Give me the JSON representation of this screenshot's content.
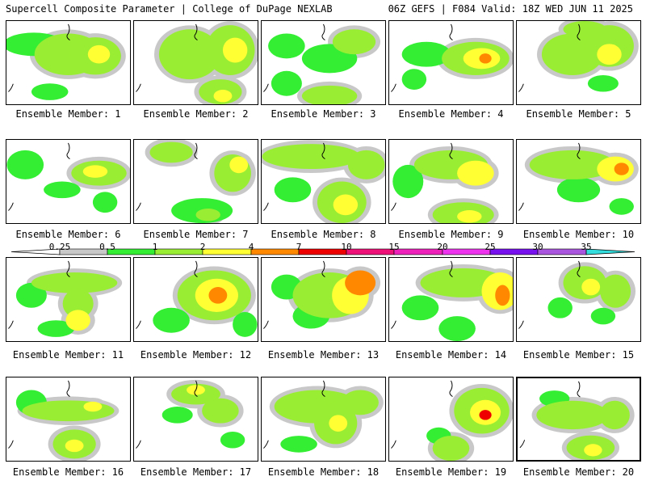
{
  "header": {
    "title_left": "Supercell Composite Parameter | College of DuPage NEXLAB",
    "title_right": "06Z GEFS | F084 Valid: 18Z WED JUN 11 2025"
  },
  "legend": {
    "ticks": [
      "0.25",
      "0.5",
      "1",
      "2",
      "4",
      "7",
      "10",
      "15",
      "20",
      "25",
      "30",
      "35"
    ],
    "colors": [
      "#c8c8c8",
      "#33ee33",
      "#99ee33",
      "#ffff33",
      "#ff8800",
      "#ee0000",
      "#ee1177",
      "#ee22bb",
      "#ee33ee",
      "#7711ee",
      "#aa55dd",
      "#33dddd"
    ]
  },
  "panel_label_prefix": "Ensemble Member: ",
  "members": [
    {
      "label": "Ensemble Member: 1",
      "blobs": [
        [
          0.22,
          0.28,
          0.5,
          0.28,
          0.5
        ],
        [
          0.5,
          0.4,
          0.55,
          0.5,
          1
        ],
        [
          0.72,
          0.42,
          0.42,
          0.45,
          1
        ],
        [
          0.75,
          0.4,
          0.18,
          0.22,
          2
        ],
        [
          0.35,
          0.85,
          0.3,
          0.2,
          0.5
        ]
      ]
    },
    {
      "label": "Ensemble Member: 2",
      "blobs": [
        [
          0.45,
          0.4,
          0.5,
          0.6,
          1
        ],
        [
          0.78,
          0.35,
          0.4,
          0.6,
          1
        ],
        [
          0.82,
          0.35,
          0.2,
          0.3,
          2
        ],
        [
          0.7,
          0.85,
          0.35,
          0.3,
          1
        ],
        [
          0.72,
          0.9,
          0.15,
          0.15,
          2
        ]
      ]
    },
    {
      "label": "Ensemble Member: 3",
      "blobs": [
        [
          0.2,
          0.3,
          0.3,
          0.3,
          0.5
        ],
        [
          0.55,
          0.45,
          0.45,
          0.35,
          0.5
        ],
        [
          0.75,
          0.25,
          0.35,
          0.3,
          1
        ],
        [
          0.55,
          0.9,
          0.45,
          0.25,
          1
        ],
        [
          0.2,
          0.75,
          0.25,
          0.3,
          0.5
        ]
      ]
    },
    {
      "label": "Ensemble Member: 4",
      "blobs": [
        [
          0.3,
          0.4,
          0.4,
          0.3,
          0.5
        ],
        [
          0.7,
          0.45,
          0.55,
          0.4,
          1
        ],
        [
          0.75,
          0.45,
          0.3,
          0.25,
          2
        ],
        [
          0.78,
          0.45,
          0.1,
          0.12,
          4
        ],
        [
          0.2,
          0.7,
          0.2,
          0.25,
          0.5
        ]
      ]
    },
    {
      "label": "Ensemble Member: 5",
      "blobs": [
        [
          0.45,
          0.4,
          0.5,
          0.5,
          1
        ],
        [
          0.75,
          0.3,
          0.4,
          0.5,
          1
        ],
        [
          0.75,
          0.4,
          0.2,
          0.25,
          2
        ],
        [
          0.55,
          0.1,
          0.35,
          0.2,
          1
        ],
        [
          0.7,
          0.75,
          0.25,
          0.2,
          0.5
        ]
      ]
    },
    {
      "label": "Ensemble Member: 6",
      "blobs": [
        [
          0.15,
          0.3,
          0.3,
          0.35,
          0.5
        ],
        [
          0.75,
          0.4,
          0.45,
          0.3,
          1
        ],
        [
          0.72,
          0.38,
          0.2,
          0.15,
          2
        ],
        [
          0.45,
          0.6,
          0.3,
          0.2,
          0.5
        ],
        [
          0.8,
          0.75,
          0.2,
          0.25,
          0.5
        ]
      ]
    },
    {
      "label": "Ensemble Member: 7",
      "blobs": [
        [
          0.3,
          0.15,
          0.35,
          0.25,
          1
        ],
        [
          0.8,
          0.4,
          0.3,
          0.45,
          1
        ],
        [
          0.85,
          0.3,
          0.15,
          0.2,
          2
        ],
        [
          0.55,
          0.85,
          0.5,
          0.3,
          0.5
        ],
        [
          0.6,
          0.9,
          0.2,
          0.15,
          1
        ]
      ]
    },
    {
      "label": "Ensemble Member: 8",
      "blobs": [
        [
          0.4,
          0.2,
          0.8,
          0.3,
          1
        ],
        [
          0.85,
          0.3,
          0.3,
          0.35,
          1
        ],
        [
          0.65,
          0.75,
          0.4,
          0.5,
          1
        ],
        [
          0.68,
          0.78,
          0.2,
          0.25,
          2
        ],
        [
          0.25,
          0.6,
          0.3,
          0.3,
          0.5
        ]
      ]
    },
    {
      "label": "Ensemble Member: 9",
      "blobs": [
        [
          0.5,
          0.3,
          0.6,
          0.35,
          1
        ],
        [
          0.7,
          0.4,
          0.3,
          0.3,
          2
        ],
        [
          0.6,
          0.9,
          0.5,
          0.3,
          1
        ],
        [
          0.65,
          0.92,
          0.2,
          0.15,
          2
        ],
        [
          0.15,
          0.5,
          0.25,
          0.4,
          0.5
        ]
      ]
    },
    {
      "label": "Ensemble Member: 10",
      "blobs": [
        [
          0.45,
          0.3,
          0.7,
          0.35,
          1
        ],
        [
          0.8,
          0.35,
          0.3,
          0.3,
          2
        ],
        [
          0.85,
          0.35,
          0.12,
          0.15,
          4
        ],
        [
          0.5,
          0.6,
          0.35,
          0.3,
          0.5
        ],
        [
          0.85,
          0.8,
          0.2,
          0.2,
          0.5
        ]
      ]
    },
    {
      "label": "Ensemble Member: 11",
      "blobs": [
        [
          0.55,
          0.3,
          0.7,
          0.25,
          1
        ],
        [
          0.58,
          0.55,
          0.25,
          0.35,
          1
        ],
        [
          0.58,
          0.75,
          0.2,
          0.25,
          2
        ],
        [
          0.2,
          0.45,
          0.25,
          0.3,
          0.5
        ],
        [
          0.4,
          0.85,
          0.3,
          0.2,
          0.5
        ]
      ]
    },
    {
      "label": "Ensemble Member: 12",
      "blobs": [
        [
          0.65,
          0.45,
          0.6,
          0.6,
          1
        ],
        [
          0.67,
          0.45,
          0.35,
          0.4,
          2
        ],
        [
          0.68,
          0.45,
          0.15,
          0.2,
          4
        ],
        [
          0.3,
          0.75,
          0.3,
          0.3,
          0.5
        ],
        [
          0.9,
          0.8,
          0.2,
          0.3,
          0.5
        ]
      ]
    },
    {
      "label": "Ensemble Member: 13",
      "blobs": [
        [
          0.55,
          0.45,
          0.6,
          0.55,
          1
        ],
        [
          0.72,
          0.45,
          0.3,
          0.45,
          2
        ],
        [
          0.8,
          0.3,
          0.25,
          0.3,
          4
        ],
        [
          0.4,
          0.7,
          0.3,
          0.3,
          0.5
        ],
        [
          0.2,
          0.35,
          0.25,
          0.3,
          0.5
        ]
      ]
    },
    {
      "label": "Ensemble Member: 14",
      "blobs": [
        [
          0.6,
          0.3,
          0.7,
          0.35,
          1
        ],
        [
          0.9,
          0.4,
          0.3,
          0.45,
          2
        ],
        [
          0.92,
          0.45,
          0.12,
          0.25,
          4
        ],
        [
          0.55,
          0.85,
          0.3,
          0.3,
          0.5
        ],
        [
          0.25,
          0.6,
          0.3,
          0.3,
          0.5
        ]
      ]
    },
    {
      "label": "Ensemble Member: 15",
      "blobs": [
        [
          0.55,
          0.3,
          0.35,
          0.4,
          1
        ],
        [
          0.6,
          0.35,
          0.15,
          0.2,
          2
        ],
        [
          0.8,
          0.4,
          0.25,
          0.4,
          1
        ],
        [
          0.35,
          0.6,
          0.2,
          0.25,
          0.5
        ],
        [
          0.7,
          0.7,
          0.2,
          0.2,
          0.5
        ]
      ]
    },
    {
      "label": "Ensemble Member: 16",
      "blobs": [
        [
          0.5,
          0.4,
          0.75,
          0.25,
          1
        ],
        [
          0.7,
          0.35,
          0.15,
          0.12,
          2
        ],
        [
          0.55,
          0.8,
          0.35,
          0.35,
          1
        ],
        [
          0.55,
          0.82,
          0.15,
          0.15,
          2
        ],
        [
          0.2,
          0.3,
          0.25,
          0.3,
          0.5
        ]
      ]
    },
    {
      "label": "Ensemble Member: 17",
      "blobs": [
        [
          0.5,
          0.2,
          0.4,
          0.25,
          1
        ],
        [
          0.5,
          0.15,
          0.15,
          0.12,
          2
        ],
        [
          0.7,
          0.4,
          0.3,
          0.3,
          1
        ],
        [
          0.35,
          0.45,
          0.25,
          0.2,
          0.5
        ],
        [
          0.8,
          0.75,
          0.2,
          0.2,
          0.5
        ]
      ]
    },
    {
      "label": "Ensemble Member: 18",
      "blobs": [
        [
          0.45,
          0.35,
          0.7,
          0.4,
          1
        ],
        [
          0.6,
          0.55,
          0.35,
          0.5,
          1
        ],
        [
          0.62,
          0.55,
          0.15,
          0.2,
          2
        ],
        [
          0.8,
          0.3,
          0.3,
          0.3,
          1
        ],
        [
          0.3,
          0.8,
          0.3,
          0.2,
          0.5
        ]
      ]
    },
    {
      "label": "Ensemble Member: 19",
      "blobs": [
        [
          0.75,
          0.4,
          0.45,
          0.55,
          1
        ],
        [
          0.78,
          0.42,
          0.25,
          0.3,
          2
        ],
        [
          0.78,
          0.45,
          0.1,
          0.12,
          7
        ],
        [
          0.5,
          0.85,
          0.3,
          0.3,
          1
        ],
        [
          0.4,
          0.7,
          0.2,
          0.2,
          0.5
        ]
      ]
    },
    {
      "label": "Ensemble Member: 20",
      "blobs": [
        [
          0.45,
          0.45,
          0.6,
          0.35,
          1
        ],
        [
          0.8,
          0.45,
          0.25,
          0.35,
          1
        ],
        [
          0.6,
          0.85,
          0.4,
          0.3,
          1
        ],
        [
          0.62,
          0.88,
          0.15,
          0.15,
          2
        ],
        [
          0.3,
          0.25,
          0.25,
          0.2,
          0.5
        ]
      ]
    }
  ]
}
